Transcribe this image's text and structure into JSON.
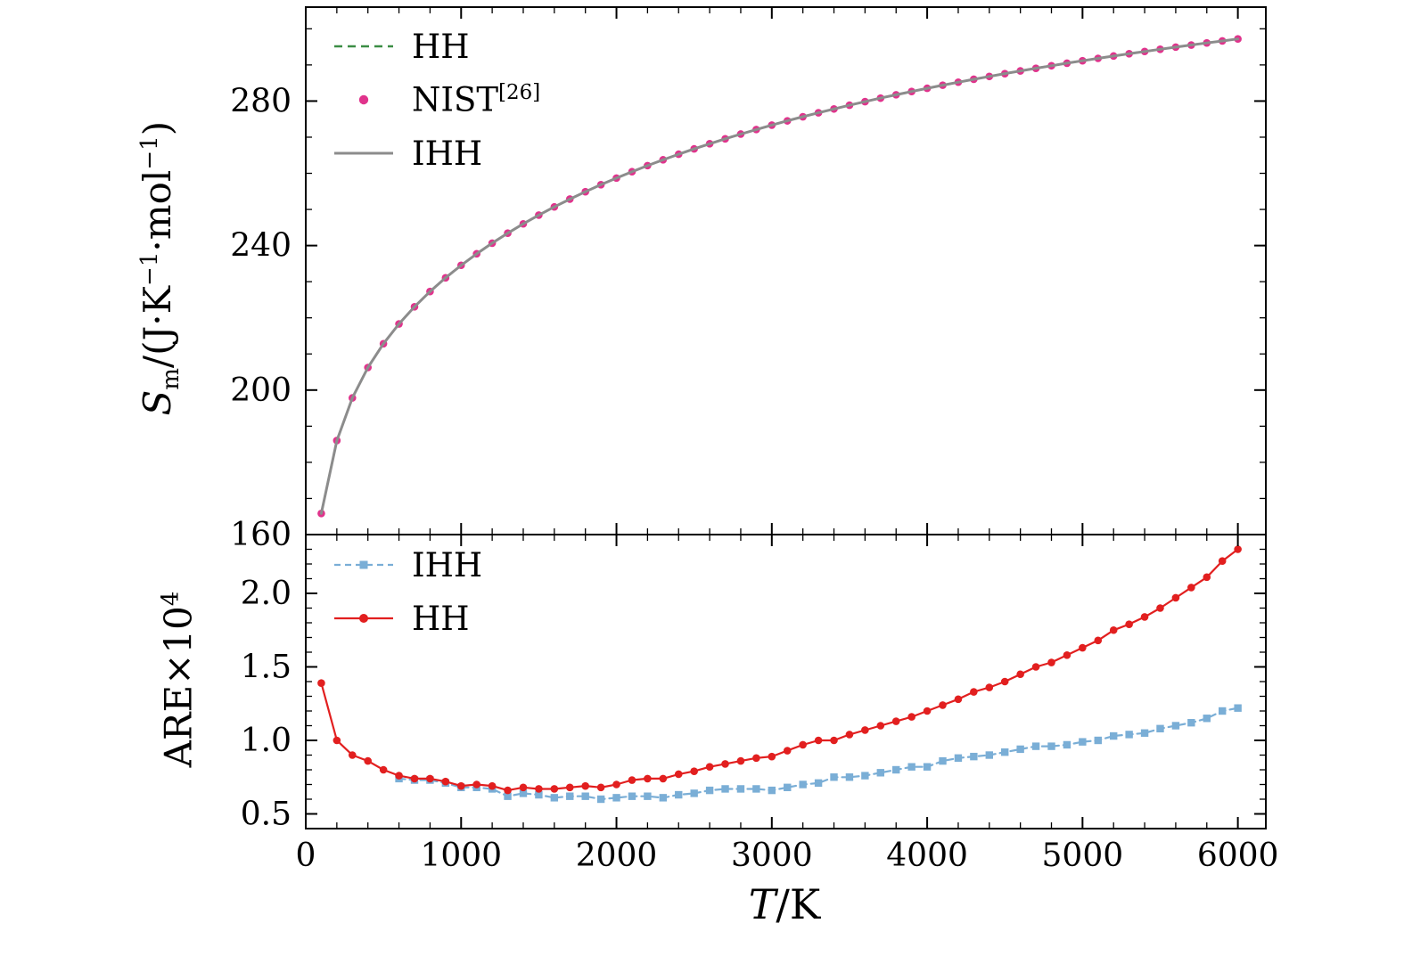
{
  "colors": {
    "background": "#ffffff",
    "axis": "#000000",
    "hh_green": "#3b8d44",
    "nist_pink": "#e0338c",
    "ihh_gray": "#8c8c8c",
    "ihh_blue": "#7aaed6",
    "hh_red": "#e21f1f"
  },
  "axes": {
    "x": {
      "ticks": [
        0,
        1000,
        2000,
        3000,
        4000,
        5000,
        6000
      ],
      "minor_step": 200,
      "range": [
        0,
        6180
      ],
      "label": {
        "sym": "T",
        "p1": "/K"
      }
    },
    "y_top": {
      "ticks": [
        160,
        200,
        240,
        280
      ],
      "minor_step": 10,
      "range": [
        160,
        306
      ],
      "label": {
        "sym": "S",
        "sub": "m",
        "p1": "/(J·K",
        "sup1": "−1",
        "p2": "·mol",
        "sup2": "−1",
        "p3": ")"
      }
    },
    "y_bottom": {
      "ticks": [
        0.5,
        1.0,
        1.5,
        2.0
      ],
      "minor_step": 0.1,
      "range": [
        0.4,
        2.4
      ],
      "label": {
        "p1": "ARE×10",
        "sup": "4"
      }
    }
  },
  "top_legend": {
    "items": [
      {
        "label": "HH"
      },
      {
        "label": "NIST",
        "sup": "[26]"
      },
      {
        "label": "IHH"
      }
    ]
  },
  "bottom_legend": {
    "items": [
      {
        "label": "IHH"
      },
      {
        "label": "HH"
      }
    ]
  },
  "chart_data": [
    {
      "type": "line",
      "panel": "top",
      "title": "",
      "xlabel": "T/K",
      "ylabel": "Sm/(J·K^-1·mol^-1)",
      "xlim": [
        0,
        6180
      ],
      "ylim": [
        160,
        306
      ],
      "x_ticks": [
        0,
        1000,
        2000,
        3000,
        4000,
        5000,
        6000
      ],
      "y_ticks": [
        160,
        200,
        240,
        280
      ],
      "x_start": 100,
      "x_step": 100,
      "grid": false,
      "legend_position": "upper left",
      "series": [
        {
          "name": "HH",
          "style": "dashed",
          "marker": "none",
          "color": "#3b8d44",
          "width": 2.4,
          "y": [
            165.85,
            186.03,
            197.83,
            206.24,
            212.83,
            218.32,
            223.06,
            227.28,
            231.07,
            234.54,
            237.72,
            240.67,
            243.43,
            246.01,
            248.43,
            250.7,
            252.86,
            254.9,
            256.84,
            258.68,
            260.44,
            262.13,
            263.74,
            265.28,
            266.76,
            268.18,
            269.55,
            270.86,
            272.12,
            273.34,
            274.52,
            275.66,
            276.76,
            277.82,
            278.85,
            279.84,
            280.81,
            281.74,
            282.65,
            283.53,
            284.39,
            285.22,
            286.03,
            286.82,
            287.59,
            288.34,
            289.07,
            289.78,
            290.48,
            291.16,
            291.82,
            292.47,
            293.1,
            293.73,
            294.33,
            294.93,
            295.51,
            296.08,
            296.64,
            297.19
          ]
        },
        {
          "name": "NIST [26]",
          "style": "none",
          "marker": "dot",
          "color": "#e0338c",
          "y_ref": "HH"
        },
        {
          "name": "IHH",
          "style": "solid",
          "marker": "none",
          "color": "#8c8c8c",
          "width": 3.0,
          "y_ref": "HH"
        }
      ]
    },
    {
      "type": "line",
      "panel": "bottom",
      "title": "",
      "xlabel": "T/K",
      "ylabel": "ARE×10^4",
      "xlim": [
        0,
        6180
      ],
      "ylim": [
        0.4,
        2.4
      ],
      "x_ticks": [
        0,
        1000,
        2000,
        3000,
        4000,
        5000,
        6000
      ],
      "y_ticks": [
        0.5,
        1.0,
        1.5,
        2.0
      ],
      "x_step": 100,
      "grid": false,
      "legend_position": "upper left",
      "series": [
        {
          "name": "IHH",
          "style": "dashed",
          "marker": "square",
          "color": "#7aaed6",
          "width": 2.2,
          "x_start": 600,
          "y": [
            0.74,
            0.73,
            0.73,
            0.71,
            0.68,
            0.68,
            0.67,
            0.62,
            0.64,
            0.63,
            0.61,
            0.62,
            0.62,
            0.6,
            0.61,
            0.62,
            0.62,
            0.61,
            0.63,
            0.64,
            0.66,
            0.67,
            0.67,
            0.67,
            0.66,
            0.68,
            0.7,
            0.71,
            0.75,
            0.75,
            0.76,
            0.78,
            0.8,
            0.82,
            0.82,
            0.86,
            0.88,
            0.89,
            0.9,
            0.92,
            0.94,
            0.96,
            0.96,
            0.97,
            0.99,
            1.0,
            1.03,
            1.04,
            1.05,
            1.08,
            1.1,
            1.12,
            1.15,
            1.2,
            1.22
          ]
        },
        {
          "name": "HH",
          "style": "solid",
          "marker": "dot",
          "color": "#e21f1f",
          "width": 2.2,
          "x_start": 100,
          "y": [
            1.39,
            1.0,
            0.9,
            0.86,
            0.8,
            0.76,
            0.74,
            0.74,
            0.72,
            0.69,
            0.7,
            0.69,
            0.66,
            0.68,
            0.67,
            0.67,
            0.68,
            0.69,
            0.68,
            0.7,
            0.73,
            0.74,
            0.74,
            0.77,
            0.79,
            0.82,
            0.84,
            0.86,
            0.88,
            0.89,
            0.93,
            0.97,
            1.0,
            1.0,
            1.04,
            1.07,
            1.1,
            1.13,
            1.16,
            1.2,
            1.24,
            1.28,
            1.33,
            1.36,
            1.4,
            1.45,
            1.5,
            1.53,
            1.58,
            1.63,
            1.68,
            1.75,
            1.79,
            1.84,
            1.9,
            1.97,
            2.04,
            2.11,
            2.22,
            2.3
          ]
        }
      ]
    }
  ]
}
